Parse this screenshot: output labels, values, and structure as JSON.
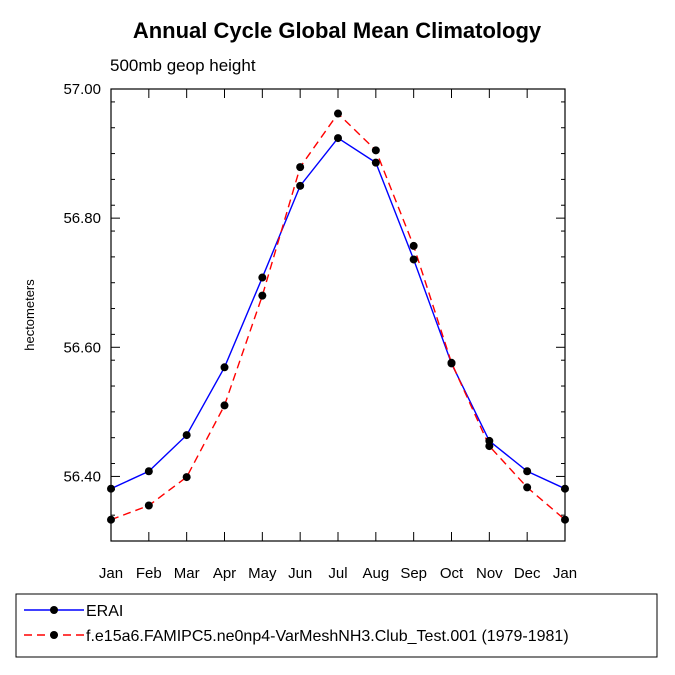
{
  "chart_data": {
    "type": "line",
    "title": "Annual Cycle Global Mean Climatology",
    "subtitle": "500mb geop height",
    "ylabel": "hectometers",
    "xlabel": "",
    "categories": [
      "Jan",
      "Feb",
      "Mar",
      "Apr",
      "May",
      "Jun",
      "Jul",
      "Aug",
      "Sep",
      "Oct",
      "Nov",
      "Dec",
      "Jan"
    ],
    "ylim": [
      56.3,
      57.0
    ],
    "yticks": [
      56.4,
      56.6,
      56.8,
      57.0
    ],
    "ytick_labels": [
      "56.40",
      "56.60",
      "56.80",
      "57.00"
    ],
    "grid": false,
    "legend_position": "bottom",
    "series": [
      {
        "name": "ERAI",
        "color": "#0000ff",
        "line_style": "solid",
        "marker": "filled-circle",
        "values": [
          56.381,
          56.408,
          56.464,
          56.569,
          56.708,
          56.85,
          56.924,
          56.886,
          56.736,
          56.575,
          56.455,
          56.408,
          56.381
        ]
      },
      {
        "name": "f.e15a6.FAMIPC5.ne0np4-VarMeshNH3.Club_Test.001 (1979-1981)",
        "color": "#ff0000",
        "line_style": "dashed",
        "marker": "filled-circle",
        "values": [
          56.333,
          56.355,
          56.399,
          56.51,
          56.68,
          56.879,
          56.962,
          56.905,
          56.757,
          56.576,
          56.447,
          56.383,
          56.333
        ]
      }
    ]
  }
}
